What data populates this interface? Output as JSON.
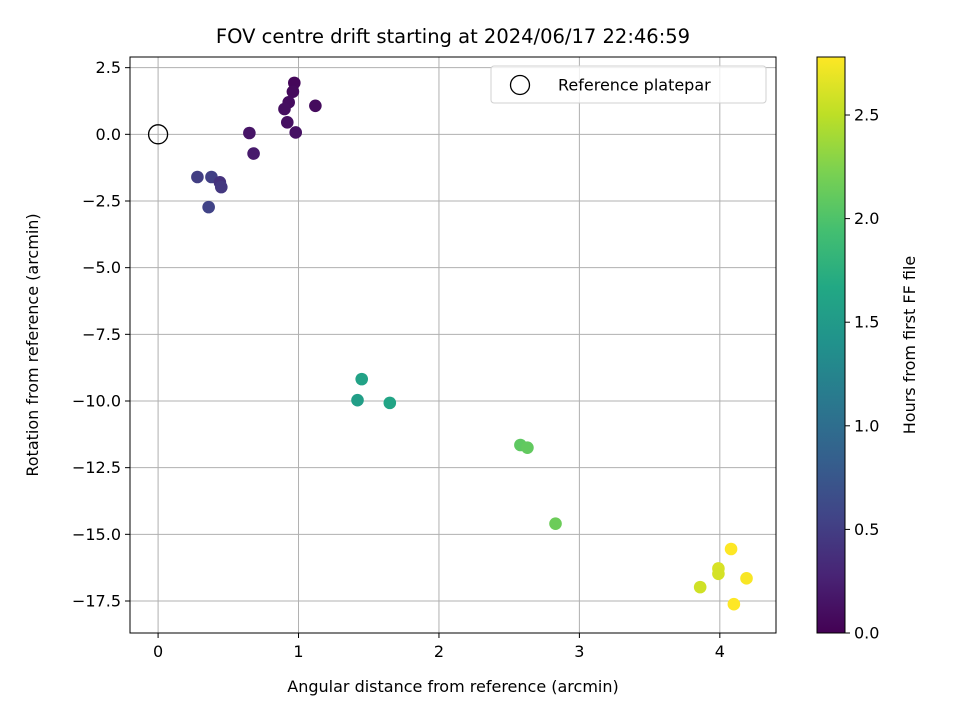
{
  "chart_data": {
    "type": "scatter",
    "title": "FOV centre drift starting at 2024/06/17 22:46:59",
    "xlabel": "Angular distance from reference (arcmin)",
    "ylabel": "Rotation from reference (arcmin)",
    "xlim": [
      -0.2,
      4.4
    ],
    "ylim": [
      -18.7,
      2.9
    ],
    "x_ticks": [
      "0",
      "1",
      "2",
      "3",
      "4"
    ],
    "x_tick_values": [
      0,
      1,
      2,
      3,
      4
    ],
    "y_ticks": [
      "2.5",
      "0.0",
      "−2.5",
      "−5.0",
      "−7.5",
      "−10.0",
      "−12.5",
      "−15.0",
      "−17.5"
    ],
    "y_tick_values": [
      2.5,
      0.0,
      -2.5,
      -5.0,
      -7.5,
      -10.0,
      -12.5,
      -15.0,
      -17.5
    ],
    "grid": true,
    "legend": {
      "placement": "top-right",
      "entries": [
        "Reference platepar"
      ]
    },
    "reference_point": {
      "name": "Reference platepar",
      "x": 0.0,
      "y": 0.0
    },
    "colorbar": {
      "label": "Hours from first FF file",
      "range": [
        0.0,
        2.78
      ],
      "ticks": [
        "0.0",
        "0.5",
        "1.0",
        "1.5",
        "2.0",
        "2.5"
      ],
      "tick_values": [
        0.0,
        0.5,
        1.0,
        1.5,
        2.0,
        2.5
      ],
      "colormap": "viridis"
    },
    "points": [
      {
        "x": 0.97,
        "y": 1.93,
        "hours": 0.05
      },
      {
        "x": 0.96,
        "y": 1.6,
        "hours": 0.07
      },
      {
        "x": 0.93,
        "y": 1.2,
        "hours": 0.09
      },
      {
        "x": 0.9,
        "y": 0.95,
        "hours": 0.1
      },
      {
        "x": 1.12,
        "y": 1.07,
        "hours": 0.08
      },
      {
        "x": 0.92,
        "y": 0.45,
        "hours": 0.12
      },
      {
        "x": 0.98,
        "y": 0.07,
        "hours": 0.13
      },
      {
        "x": 0.65,
        "y": 0.05,
        "hours": 0.15
      },
      {
        "x": 0.68,
        "y": -0.72,
        "hours": 0.2
      },
      {
        "x": 0.28,
        "y": -1.6,
        "hours": 0.5
      },
      {
        "x": 0.38,
        "y": -1.6,
        "hours": 0.52
      },
      {
        "x": 0.44,
        "y": -1.8,
        "hours": 0.4
      },
      {
        "x": 0.45,
        "y": -1.98,
        "hours": 0.45
      },
      {
        "x": 0.36,
        "y": -2.73,
        "hours": 0.55
      },
      {
        "x": 1.45,
        "y": -9.18,
        "hours": 1.6
      },
      {
        "x": 1.42,
        "y": -9.97,
        "hours": 1.55
      },
      {
        "x": 1.65,
        "y": -10.07,
        "hours": 1.62
      },
      {
        "x": 2.58,
        "y": -11.65,
        "hours": 2.08
      },
      {
        "x": 2.63,
        "y": -11.75,
        "hours": 2.1
      },
      {
        "x": 2.83,
        "y": -14.6,
        "hours": 2.15
      },
      {
        "x": 4.08,
        "y": -15.55,
        "hours": 2.78
      },
      {
        "x": 3.99,
        "y": -16.28,
        "hours": 2.62
      },
      {
        "x": 3.99,
        "y": -16.48,
        "hours": 2.6
      },
      {
        "x": 4.19,
        "y": -16.65,
        "hours": 2.76
      },
      {
        "x": 3.86,
        "y": -16.98,
        "hours": 2.58
      },
      {
        "x": 4.1,
        "y": -17.62,
        "hours": 2.78
      }
    ]
  }
}
